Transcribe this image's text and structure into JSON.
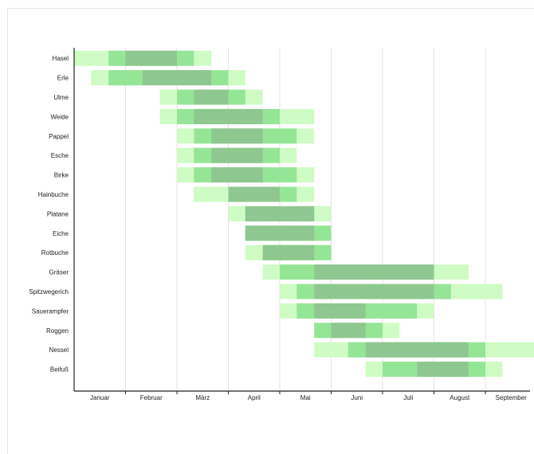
{
  "chart_data": {
    "type": "gantt",
    "title": "",
    "xlabel": "",
    "ylabel": "",
    "x_unit": "month",
    "xlim": [
      0,
      9
    ],
    "months": [
      "Januar",
      "Februar",
      "März",
      "April",
      "Mai",
      "Juni",
      "Juli",
      "August",
      "September"
    ],
    "intensity_levels": [
      {
        "level": "light",
        "color": "#cffbc4"
      },
      {
        "level": "medium",
        "color": "#95e597"
      },
      {
        "level": "strong",
        "color": "#8fc791"
      }
    ],
    "plants": [
      {
        "name": "Hasel",
        "light": [
          0.0,
          2.67
        ],
        "medium": [
          0.67,
          2.33
        ],
        "strong": [
          1.0,
          2.0
        ]
      },
      {
        "name": "Erle",
        "light": [
          0.33,
          3.33
        ],
        "medium": [
          0.67,
          3.0
        ],
        "strong": [
          1.33,
          2.67
        ]
      },
      {
        "name": "Ulme",
        "light": [
          1.67,
          3.67
        ],
        "medium": [
          2.0,
          3.33
        ],
        "strong": [
          2.33,
          3.0
        ]
      },
      {
        "name": "Weide",
        "light": [
          1.67,
          4.67
        ],
        "medium": [
          2.0,
          4.0
        ],
        "strong": [
          2.33,
          3.67
        ]
      },
      {
        "name": "Pappel",
        "light": [
          2.0,
          4.67
        ],
        "medium": [
          2.33,
          4.33
        ],
        "strong": [
          2.67,
          3.67
        ]
      },
      {
        "name": "Esche",
        "light": [
          2.0,
          4.33
        ],
        "medium": [
          2.33,
          4.0
        ],
        "strong": [
          2.67,
          3.67
        ]
      },
      {
        "name": "Birke",
        "light": [
          2.0,
          4.67
        ],
        "medium": [
          2.33,
          4.33
        ],
        "strong": [
          2.67,
          3.67
        ]
      },
      {
        "name": "Hainbuche",
        "light": [
          2.33,
          4.67
        ],
        "medium": [
          3.0,
          4.33
        ],
        "strong": [
          3.0,
          4.0
        ]
      },
      {
        "name": "Platane",
        "light": [
          3.0,
          5.0
        ],
        "medium": [
          3.33,
          4.67
        ],
        "strong": [
          3.33,
          4.67
        ]
      },
      {
        "name": "Eiche",
        "light": [
          3.33,
          5.0
        ],
        "medium": [
          3.33,
          5.0
        ],
        "strong": [
          3.33,
          4.67
        ]
      },
      {
        "name": "Rotbuche",
        "light": [
          3.33,
          5.0
        ],
        "medium": [
          3.67,
          5.0
        ],
        "strong": [
          3.67,
          4.67
        ]
      },
      {
        "name": "Gräser",
        "light": [
          3.67,
          7.67
        ],
        "medium": [
          4.0,
          7.0
        ],
        "strong": [
          4.67,
          7.0
        ]
      },
      {
        "name": "Spitzwegerich",
        "light": [
          4.0,
          8.33
        ],
        "medium": [
          4.33,
          7.33
        ],
        "strong": [
          4.67,
          7.0
        ]
      },
      {
        "name": "Sauerampfer",
        "light": [
          4.0,
          7.0
        ],
        "medium": [
          4.33,
          6.67
        ],
        "strong": [
          4.67,
          5.67
        ]
      },
      {
        "name": "Roggen",
        "light": [
          4.67,
          6.33
        ],
        "medium": [
          4.67,
          6.0
        ],
        "strong": [
          5.0,
          5.67
        ]
      },
      {
        "name": "Nessel",
        "light": [
          4.67,
          9.0
        ],
        "medium": [
          5.33,
          8.0
        ],
        "strong": [
          5.67,
          7.67
        ]
      },
      {
        "name": "Beifuß",
        "light": [
          5.67,
          8.33
        ],
        "medium": [
          6.0,
          8.0
        ],
        "strong": [
          6.67,
          7.67
        ]
      }
    ]
  }
}
